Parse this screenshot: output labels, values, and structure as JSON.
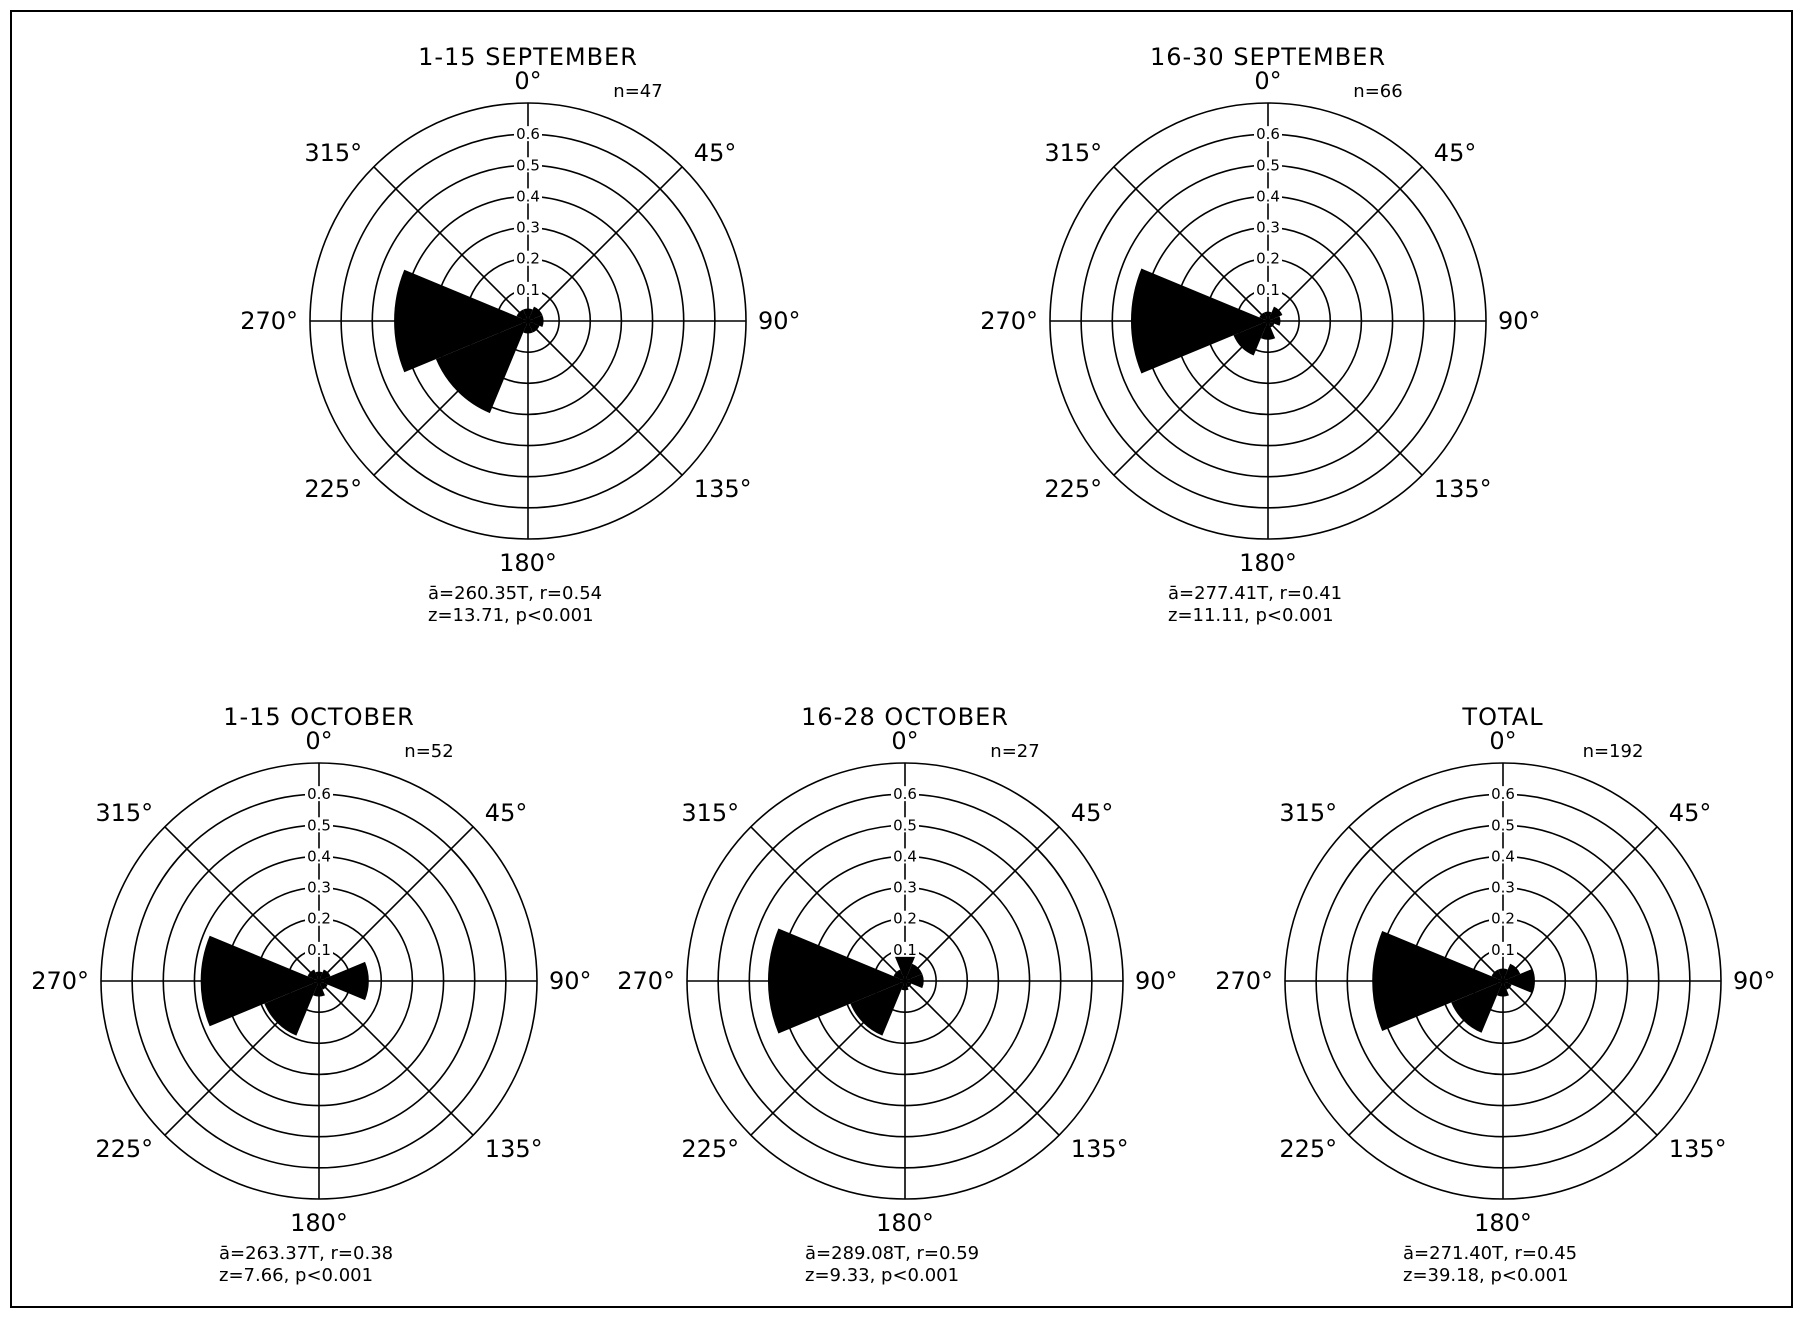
{
  "chart_data": [
    {
      "type": "rose",
      "title": "1-15 SEPTEMBER",
      "n_label": "n=47",
      "stats_line1": "ā=260.35T,  r=0.54",
      "stats_line2": "z=13.71,  p<0.001",
      "direction_labels": [
        "0°",
        "45°",
        "90°",
        "135°",
        "180°",
        "225°",
        "270°",
        "315°"
      ],
      "ring_labels": [
        "0.1",
        "0.2",
        "0.3",
        "0.4",
        "0.5",
        "0.6"
      ],
      "rmax": 0.7,
      "sectors_deg": [
        0,
        45,
        90,
        135,
        180,
        225,
        270,
        315
      ],
      "values": [
        0.04,
        0.05,
        0.05,
        0.04,
        0.04,
        0.32,
        0.43,
        0.04
      ]
    },
    {
      "type": "rose",
      "title": "16-30 SEPTEMBER",
      "n_label": "n=66",
      "stats_line1": "ā=277.41T,  r=0.41",
      "stats_line2": "z=11.11,  p<0.001",
      "direction_labels": [
        "0°",
        "45°",
        "90°",
        "135°",
        "180°",
        "225°",
        "270°",
        "315°"
      ],
      "ring_labels": [
        "0.1",
        "0.2",
        "0.3",
        "0.4",
        "0.5",
        "0.6"
      ],
      "rmax": 0.7,
      "sectors_deg": [
        0,
        45,
        90,
        135,
        180,
        225,
        270,
        315
      ],
      "values": [
        0.03,
        0.05,
        0.04,
        0.02,
        0.06,
        0.12,
        0.44,
        0.03
      ]
    },
    {
      "type": "rose",
      "title": "1-15 OCTOBER",
      "n_label": "n=52",
      "stats_line1": "ā=263.37T,  r=0.38",
      "stats_line2": "z=7.66,  p<0.001",
      "direction_labels": [
        "0°",
        "45°",
        "90°",
        "135°",
        "180°",
        "225°",
        "270°",
        "315°"
      ],
      "ring_labels": [
        "0.1",
        "0.2",
        "0.3",
        "0.4",
        "0.5",
        "0.6"
      ],
      "rmax": 0.7,
      "sectors_deg": [
        0,
        45,
        90,
        135,
        180,
        225,
        270,
        315
      ],
      "values": [
        0.03,
        0.04,
        0.16,
        0.03,
        0.05,
        0.19,
        0.38,
        0.04
      ]
    },
    {
      "type": "rose",
      "title": "16-28 OCTOBER",
      "n_label": "n=27",
      "stats_line1": "ā=289.08T,  r=0.59",
      "stats_line2": "z=9.33,  p<0.001",
      "direction_labels": [
        "0°",
        "45°",
        "90°",
        "135°",
        "180°",
        "225°",
        "270°",
        "315°"
      ],
      "ring_labels": [
        "0.1",
        "0.2",
        "0.3",
        "0.4",
        "0.5",
        "0.6"
      ],
      "rmax": 0.7,
      "sectors_deg": [
        0,
        45,
        90,
        135,
        180,
        225,
        270,
        315
      ],
      "values": [
        0.1,
        0.06,
        0.06,
        0.02,
        0.03,
        0.19,
        0.44,
        0.04
      ]
    },
    {
      "type": "rose",
      "title": "TOTAL",
      "n_label": "n=192",
      "stats_line1": "ā=271.40T,  r=0.45",
      "stats_line2": "z=39.18,  p<0.001",
      "direction_labels": [
        "0°",
        "45°",
        "90°",
        "135°",
        "180°",
        "225°",
        "270°",
        "315°"
      ],
      "ring_labels": [
        "0.1",
        "0.2",
        "0.3",
        "0.4",
        "0.5",
        "0.6"
      ],
      "rmax": 0.7,
      "sectors_deg": [
        0,
        45,
        90,
        135,
        180,
        225,
        270,
        315
      ],
      "values": [
        0.04,
        0.06,
        0.1,
        0.03,
        0.05,
        0.18,
        0.42,
        0.04
      ]
    }
  ]
}
